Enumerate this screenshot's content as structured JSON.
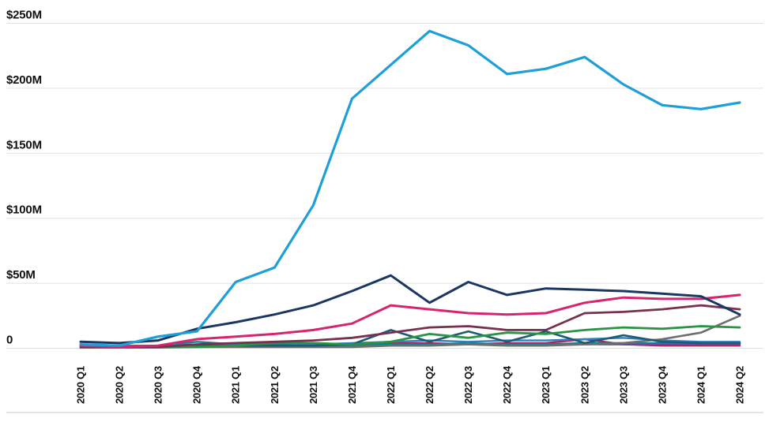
{
  "chart_data": {
    "type": "line",
    "title": "",
    "xlabel": "",
    "ylabel": "",
    "legend": "none",
    "grid": true,
    "ylim": [
      0,
      250
    ],
    "y_ticks": [
      {
        "label": "$250M",
        "value": 250
      },
      {
        "label": "$200M",
        "value": 200
      },
      {
        "label": "$150M",
        "value": 150
      },
      {
        "label": "$100M",
        "value": 100
      },
      {
        "label": "$50M",
        "value": 50
      },
      {
        "label": "0",
        "value": 0
      }
    ],
    "categories": [
      "2020 Q1",
      "2020 Q2",
      "2020 Q3",
      "2020 Q4",
      "2021 Q1",
      "2021 Q2",
      "2021 Q3",
      "2021 Q4",
      "2022 Q1",
      "2022 Q2",
      "2022 Q3",
      "2022 Q4",
      "2023 Q1",
      "2023 Q2",
      "2023 Q3",
      "2023 Q4",
      "2024 Q1",
      "2024 Q2"
    ],
    "unit": "USD millions",
    "series": [
      {
        "name": "royal-blue",
        "color": "#2A4A9B",
        "width": 2.4,
        "values": [
          2,
          2,
          2,
          2,
          3,
          3,
          2,
          2,
          3,
          3,
          3,
          3,
          3,
          3,
          3,
          3,
          3,
          3
        ]
      },
      {
        "name": "crimson",
        "color": "#AE2352",
        "width": 2.4,
        "values": [
          1,
          1,
          1,
          2,
          3,
          3,
          3,
          3,
          4,
          4,
          3,
          4,
          4,
          7,
          3,
          2,
          2,
          2
        ]
      },
      {
        "name": "purple",
        "color": "#6F42A0",
        "width": 2.4,
        "values": [
          1,
          1,
          1,
          2,
          2,
          2,
          2,
          2,
          3,
          3,
          3,
          3,
          3,
          4,
          3,
          3,
          3,
          3
        ]
      },
      {
        "name": "teal",
        "color": "#12828E",
        "width": 2.4,
        "values": [
          1,
          1,
          2,
          5,
          3,
          3,
          2,
          2,
          3,
          3,
          4,
          3,
          3,
          4,
          4,
          4,
          4,
          4
        ]
      },
      {
        "name": "blue",
        "color": "#2F80BF",
        "width": 2.4,
        "values": [
          2,
          2,
          2,
          3,
          3,
          4,
          3,
          4,
          5,
          6,
          5,
          6,
          6,
          7,
          8,
          6,
          5,
          5
        ]
      },
      {
        "name": "gray",
        "color": "#6E6E6E",
        "width": 2.6,
        "values": [
          0.5,
          0.5,
          0.5,
          1,
          1,
          1,
          1,
          1,
          2,
          2,
          3,
          2,
          2,
          3,
          4,
          7,
          12,
          25
        ]
      },
      {
        "name": "dark-teal",
        "color": "#1E5A78",
        "width": 2.6,
        "values": [
          1,
          1,
          1,
          2,
          2,
          2,
          2,
          3,
          14,
          5,
          13,
          5,
          13,
          4,
          10,
          5,
          4,
          4
        ]
      },
      {
        "name": "green",
        "color": "#2B9344",
        "width": 2.8,
        "values": [
          0.5,
          0.5,
          1,
          1,
          2,
          4,
          4,
          3,
          5,
          11,
          8,
          12,
          11,
          14,
          16,
          15,
          17,
          16
        ]
      },
      {
        "name": "maroon",
        "color": "#77304F",
        "width": 2.8,
        "values": [
          1,
          1,
          1,
          3,
          4,
          5,
          6,
          8,
          12,
          16,
          17,
          14,
          14,
          27,
          28,
          30,
          33,
          30
        ]
      },
      {
        "name": "pink",
        "color": "#D6246E",
        "width": 3,
        "values": [
          2,
          1,
          2,
          7,
          9,
          11,
          14,
          19,
          33,
          30,
          27,
          26,
          27,
          35,
          39,
          38,
          38,
          41
        ]
      },
      {
        "name": "navy",
        "color": "#1A3763",
        "width": 3,
        "values": [
          5,
          4,
          6,
          15,
          20,
          26,
          33,
          44,
          56,
          35,
          51,
          41,
          46,
          45,
          44,
          42,
          40,
          26
        ]
      },
      {
        "name": "light-blue",
        "color": "#1E9FD8",
        "width": 3.2,
        "values": [
          3,
          2,
          9,
          13,
          51,
          62,
          110,
          192,
          218,
          244,
          233,
          211,
          215,
          224,
          203,
          187,
          184,
          189
        ]
      }
    ]
  },
  "colors": {
    "background": "#FFFFFF",
    "gridline": "#E0E0E0",
    "bottom_border": "#DBDBDB",
    "axis_text": "#111111"
  }
}
